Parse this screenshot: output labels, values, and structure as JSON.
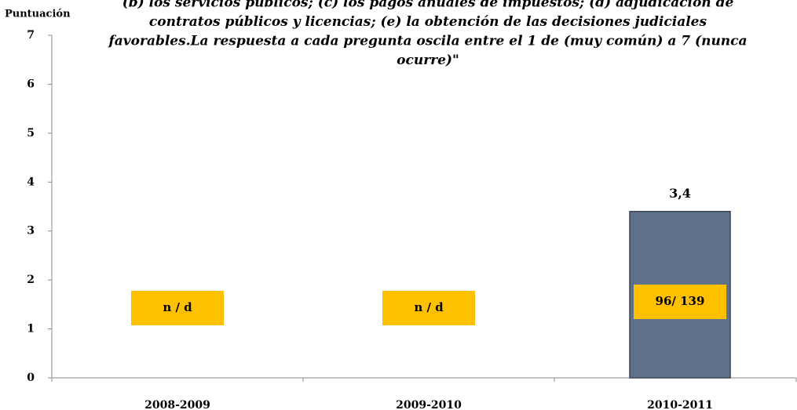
{
  "chart_data": {
    "type": "bar",
    "y_label": "Puntuación",
    "title_lines": [
      "(b) los servicios públicos; (c) los pagos anuales de impuestos; (d) adjudicación de",
      "contratos públicos y licencias; (e) la obtención de las decisiones judiciales",
      "favorables.La respuesta a cada pregunta oscila entre el 1 de (muy común) a 7 (nunca",
      "ocurre)\""
    ],
    "categories": [
      "2008-2009",
      "2009-2010",
      "2010-2011"
    ],
    "values": [
      null,
      null,
      3.4
    ],
    "value_labels": [
      null,
      null,
      "3,4"
    ],
    "rank_labels": [
      "n / d",
      "n / d",
      "96/ 139"
    ],
    "color": "#5f7189",
    "rank_color": "#ffc000",
    "ylim": [
      0,
      7
    ],
    "yticks": [
      0,
      1,
      2,
      3,
      4,
      5,
      6,
      7
    ],
    "grid": false
  }
}
